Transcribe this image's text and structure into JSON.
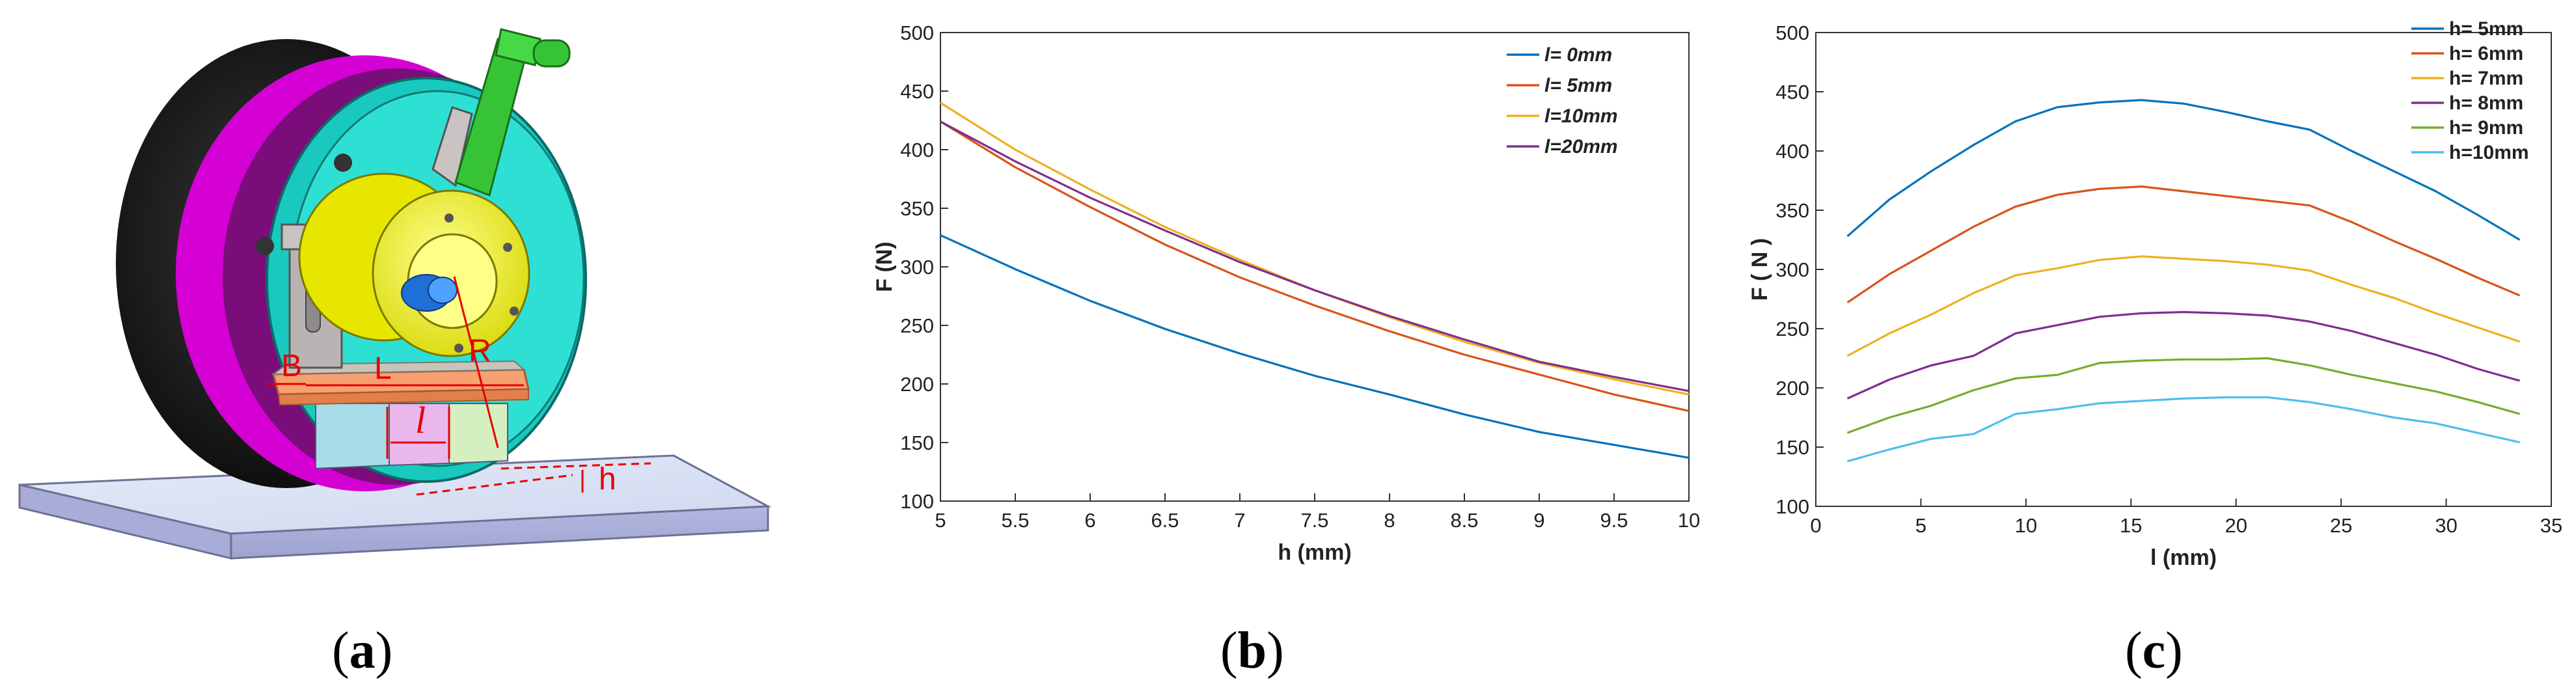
{
  "figure": {
    "labels": [
      {
        "open": "(",
        "letter": "a",
        "close": ")"
      },
      {
        "open": "(",
        "letter": "b",
        "close": ")"
      },
      {
        "open": "(",
        "letter": "c",
        "close": ")"
      }
    ]
  },
  "illustration": {
    "dimension_labels": {
      "b": "B",
      "l_upper": "L",
      "l_lower": "l",
      "r": "R",
      "h": "h"
    }
  },
  "chart_data": [
    {
      "type": "line",
      "title": "",
      "xlabel": "h (mm)",
      "ylabel": "F (N)",
      "xlim": [
        5,
        10
      ],
      "ylim": [
        100,
        500
      ],
      "xticks": [
        "5",
        "5.5",
        "6",
        "6.5",
        "7",
        "7.5",
        "8",
        "8.5",
        "9",
        "9.5",
        "10"
      ],
      "yticks": [
        "100",
        "150",
        "200",
        "250",
        "300",
        "350",
        "400",
        "450",
        "500"
      ],
      "grid": false,
      "legend": "top-right",
      "x": [
        5,
        5.5,
        6,
        6.5,
        7,
        7.5,
        8,
        8.5,
        9,
        9.5,
        10
      ],
      "series": [
        {
          "name": "l= 0mm",
          "color": "#0072BD",
          "values": [
            327,
            298,
            271,
            247,
            226,
            207,
            191,
            174,
            159,
            148,
            137
          ]
        },
        {
          "name": "l= 5mm",
          "color": "#D95319",
          "values": [
            424,
            385,
            351,
            319,
            291,
            267,
            245,
            225,
            208,
            191,
            177
          ]
        },
        {
          "name": "l=10mm",
          "color": "#EDB120",
          "values": [
            440,
            400,
            366,
            334,
            306,
            280,
            257,
            236,
            218,
            204,
            191
          ]
        },
        {
          "name": "l=20mm",
          "color": "#7E2F8E",
          "values": [
            424,
            390,
            359,
            331,
            304,
            280,
            258,
            238,
            219,
            206,
            194
          ]
        }
      ]
    },
    {
      "type": "line",
      "title": "",
      "xlabel": "l (mm)",
      "ylabel": "F ( N )",
      "xlim": [
        0,
        35
      ],
      "ylim": [
        100,
        500
      ],
      "xticks": [
        "0",
        "5",
        "10",
        "15",
        "20",
        "25",
        "30",
        "35"
      ],
      "yticks": [
        "100",
        "150",
        "200",
        "250",
        "300",
        "350",
        "400",
        "450",
        "500"
      ],
      "grid": false,
      "legend": "top-right",
      "x": [
        1.5,
        3.5,
        5.5,
        7.5,
        9.5,
        11.5,
        13.5,
        15.5,
        17.5,
        19.5,
        21.5,
        23.5,
        25.5,
        27.5,
        29.5,
        31.5,
        33.5
      ],
      "series": [
        {
          "name": "h= 5mm",
          "color": "#0072BD",
          "values": [
            328,
            359,
            383,
            405,
            425,
            437,
            441,
            443,
            440,
            433,
            425,
            418,
            400,
            383,
            366,
            346,
            325
          ]
        },
        {
          "name": "h= 6mm",
          "color": "#D95319",
          "values": [
            272,
            296,
            316,
            336,
            353,
            363,
            368,
            370,
            366,
            362,
            358,
            354,
            340,
            324,
            309,
            293,
            278
          ]
        },
        {
          "name": "h= 7mm",
          "color": "#EDB120",
          "values": [
            227,
            246,
            262,
            280,
            295,
            301,
            308,
            311,
            309,
            307,
            304,
            299,
            287,
            276,
            263,
            251,
            239
          ]
        },
        {
          "name": "h= 8mm",
          "color": "#7E2F8E",
          "values": [
            191,
            207,
            219,
            227,
            246,
            253,
            260,
            263,
            264,
            263,
            261,
            256,
            248,
            238,
            228,
            216,
            206
          ]
        },
        {
          "name": "h= 9mm",
          "color": "#77AC30",
          "values": [
            162,
            175,
            185,
            198,
            208,
            211,
            221,
            223,
            224,
            224,
            225,
            219,
            211,
            204,
            197,
            188,
            178
          ]
        },
        {
          "name": "h=10mm",
          "color": "#4DBEEE",
          "values": [
            138,
            148,
            157,
            161,
            178,
            182,
            187,
            189,
            191,
            192,
            192,
            188,
            182,
            175,
            170,
            162,
            154
          ]
        }
      ]
    }
  ]
}
